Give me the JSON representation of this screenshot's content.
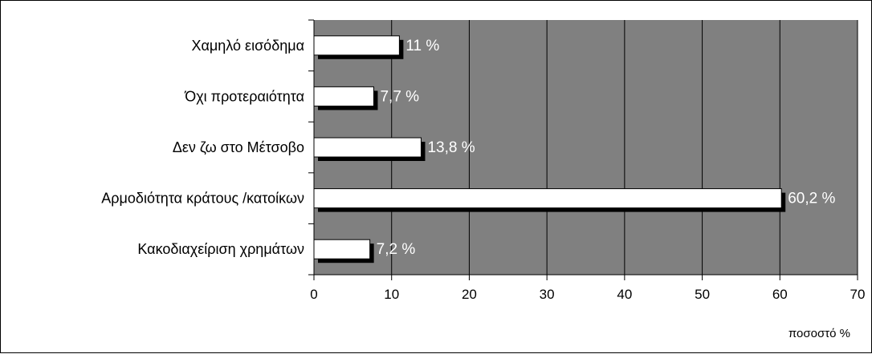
{
  "chart_data": {
    "type": "bar",
    "orientation": "horizontal",
    "categories": [
      "Χαμηλό εισόδημα",
      "Όχι προτεραιότητα",
      "Δεν ζω στο Μέτσοβο",
      "Αρμοδιότητα κράτους /κατοίκων",
      "Κακοδιαχείριση χρημάτων"
    ],
    "values": [
      11,
      7.7,
      13.8,
      60.2,
      7.2
    ],
    "data_labels": [
      "11 %",
      "7,7 %",
      "13,8 %",
      "60,2 %",
      "7,2 %"
    ],
    "xlim": [
      0,
      70
    ],
    "xticks": [
      0,
      10,
      20,
      30,
      40,
      50,
      60,
      70
    ],
    "xlabel": "ποσοστό %",
    "grid": true,
    "legend": "none",
    "colors": {
      "plot_background": "#808080",
      "bar_fill": "#ffffff",
      "bar_shadow": "#000000",
      "data_label": "#ffffff",
      "gridline": "#000000"
    }
  }
}
